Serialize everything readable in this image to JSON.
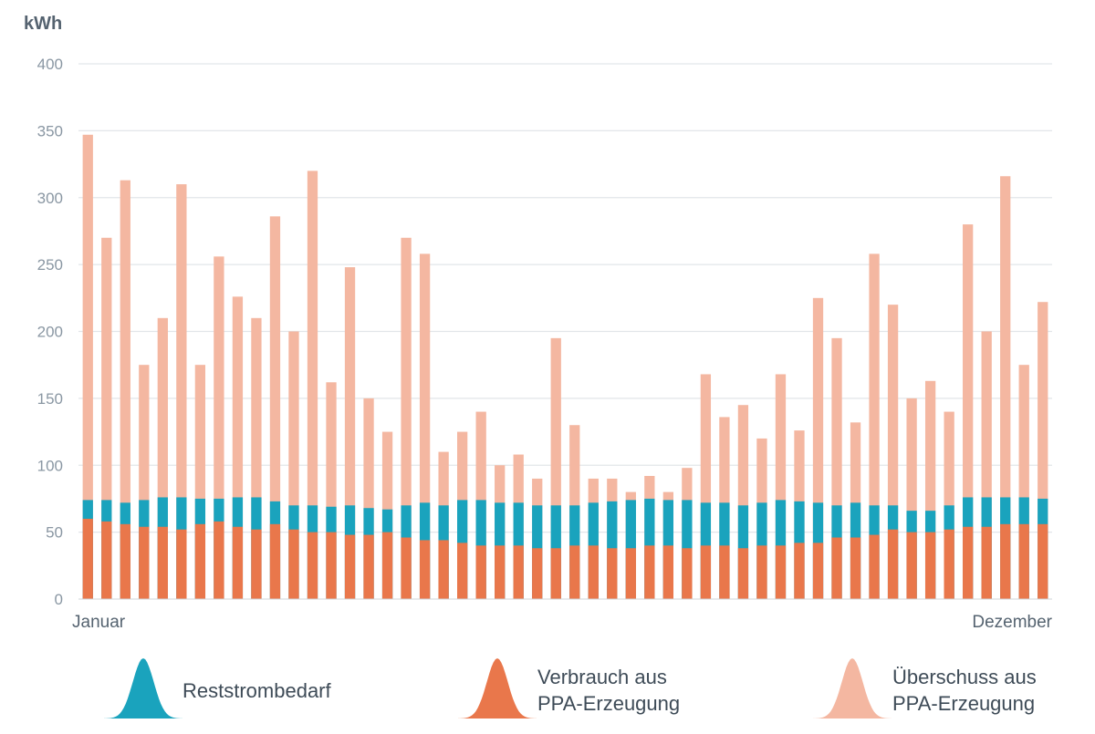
{
  "chart_data": {
    "type": "area",
    "ylabel": "kWh",
    "ylim": [
      0,
      400
    ],
    "yticks": [
      0,
      50,
      100,
      150,
      200,
      250,
      300,
      350,
      400
    ],
    "xaxis": {
      "start_label": "Januar",
      "end_label": "Dezember"
    },
    "grid": true,
    "legend_position": "bottom",
    "bin_unit": "week",
    "series": [
      {
        "name": "Reststrombedarf",
        "color": "#1aa3bd",
        "values": [
          74,
          74,
          72,
          74,
          76,
          76,
          75,
          75,
          76,
          76,
          73,
          70,
          70,
          69,
          70,
          68,
          67,
          70,
          72,
          70,
          74,
          74,
          72,
          72,
          70,
          70,
          70,
          72,
          73,
          74,
          75,
          74,
          74,
          72,
          72,
          70,
          72,
          74,
          73,
          72,
          70,
          72,
          70,
          70,
          66,
          66,
          70,
          76,
          76,
          76,
          76,
          75
        ]
      },
      {
        "name": "Verbrauch aus PPA-Erzeugung",
        "color": "#e9774b",
        "values": [
          60,
          58,
          56,
          54,
          54,
          52,
          56,
          58,
          54,
          52,
          56,
          52,
          50,
          50,
          48,
          48,
          50,
          46,
          44,
          44,
          42,
          40,
          40,
          40,
          38,
          38,
          40,
          40,
          38,
          38,
          40,
          40,
          38,
          40,
          40,
          38,
          40,
          40,
          42,
          42,
          46,
          46,
          48,
          52,
          50,
          50,
          52,
          54,
          54,
          56,
          56,
          56
        ]
      },
      {
        "name": "Überschuss aus PPA-Erzeugung",
        "color": "#f4b7a1",
        "values": [
          347,
          270,
          313,
          175,
          210,
          310,
          175,
          256,
          226,
          210,
          286,
          200,
          320,
          162,
          248,
          150,
          125,
          270,
          258,
          110,
          125,
          140,
          100,
          108,
          90,
          195,
          130,
          90,
          90,
          80,
          92,
          80,
          98,
          168,
          136,
          145,
          120,
          168,
          126,
          225,
          195,
          132,
          258,
          220,
          150,
          163,
          140,
          280,
          200,
          316,
          175,
          222
        ]
      }
    ]
  }
}
